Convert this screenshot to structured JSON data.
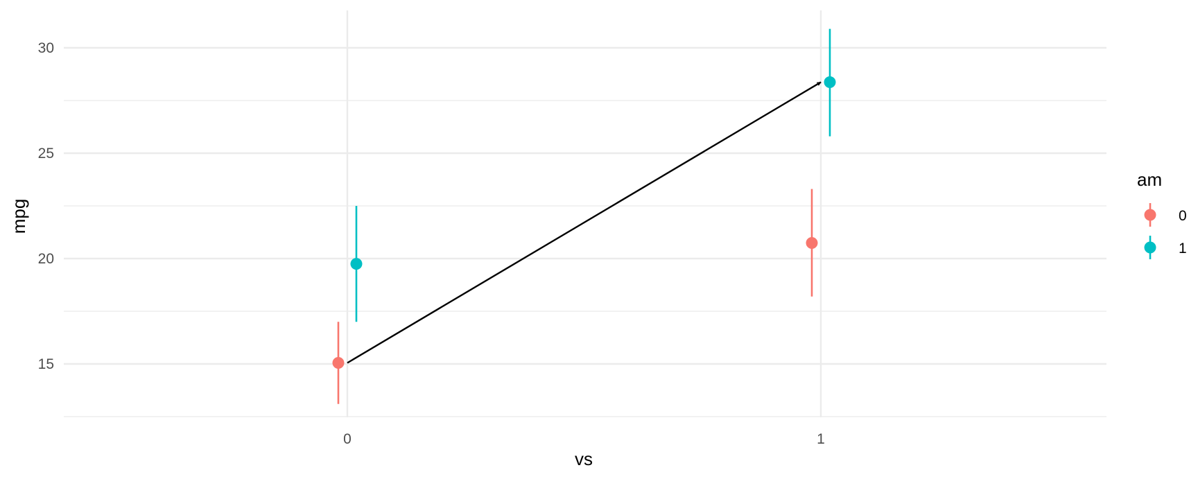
{
  "chart_data": {
    "type": "scatter",
    "xlabel": "vs",
    "ylabel": "mpg",
    "x_categories": [
      "0",
      "1"
    ],
    "ylim": [
      12.4,
      32
    ],
    "y_ticks": [
      15,
      20,
      25,
      30
    ],
    "y_minor_ticks": [
      12.5,
      17.5,
      22.5,
      27.5
    ],
    "grid": true,
    "legend": {
      "title": "am",
      "position": "right",
      "entries": [
        {
          "label": "0",
          "color": "#F8766D"
        },
        {
          "label": "1",
          "color": "#00BFC4"
        }
      ]
    },
    "series": [
      {
        "name": "0",
        "color": "#F8766D",
        "points": [
          {
            "x": "0",
            "y": 15.05,
            "ymin": 13.1,
            "ymax": 17.0
          },
          {
            "x": "1",
            "y": 20.74,
            "ymin": 18.2,
            "ymax": 23.3
          }
        ]
      },
      {
        "name": "1",
        "color": "#00BFC4",
        "points": [
          {
            "x": "0",
            "y": 19.75,
            "ymin": 17.0,
            "ymax": 22.5
          },
          {
            "x": "1",
            "y": 28.37,
            "ymin": 25.8,
            "ymax": 30.9
          }
        ]
      }
    ],
    "annotations": [
      {
        "type": "arrow",
        "from": {
          "x": "0",
          "y": 15.05
        },
        "to": {
          "x": "1",
          "y": 28.37
        },
        "color": "#000000"
      }
    ]
  }
}
